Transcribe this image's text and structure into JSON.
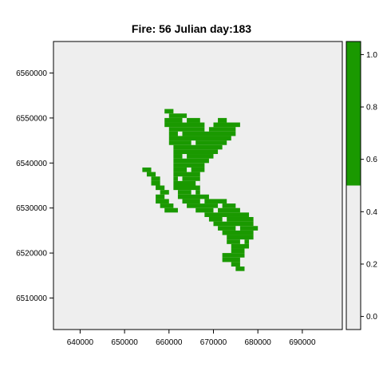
{
  "chart_data": {
    "type": "heatmap",
    "title": "Fire: 56   Julian day:183",
    "xlabel": "",
    "ylabel": "",
    "xlim": [
      634000,
      699000
    ],
    "ylim": [
      6503000,
      6567000
    ],
    "x_ticks": [
      "640000",
      "650000",
      "660000",
      "670000",
      "680000",
      "690000"
    ],
    "y_ticks": [
      "6510000",
      "6520000",
      "6530000",
      "6540000",
      "6550000",
      "6560000"
    ],
    "x_tick_values": [
      640000,
      650000,
      660000,
      670000,
      680000,
      690000
    ],
    "y_tick_values": [
      6510000,
      6520000,
      6530000,
      6540000,
      6550000,
      6560000
    ],
    "grid": false,
    "legend": "right",
    "colors": {
      "background": "#eeeeee",
      "burned": "#1a9900",
      "unburned": "#eeeeee"
    },
    "colorbar": {
      "range": [
        -0.05,
        1.05
      ],
      "ticks": [
        "0.0",
        "0.2",
        "0.4",
        "0.6",
        "0.8",
        "1.0"
      ],
      "tick_values": [
        0.0,
        0.2,
        0.4,
        0.6,
        0.8,
        1.0
      ],
      "breaks": [
        {
          "from": -0.05,
          "to": 0.5,
          "color": "#eeeeee"
        },
        {
          "from": 0.5,
          "to": 1.05,
          "color": "#1a9900"
        }
      ]
    },
    "cell_size": 1000,
    "burned_rows": [
      {
        "y": 6551000,
        "spans": [
          [
            659000,
            661000
          ]
        ]
      },
      {
        "y": 6550000,
        "spans": [
          [
            660000,
            664000
          ]
        ]
      },
      {
        "y": 6549000,
        "spans": [
          [
            659000,
            667000
          ],
          [
            671000,
            673000
          ]
        ]
      },
      {
        "y": 6548000,
        "spans": [
          [
            659000,
            668000
          ],
          [
            670000,
            676000
          ]
        ]
      },
      {
        "y": 6547000,
        "spans": [
          [
            660000,
            668000
          ],
          [
            669000,
            675000
          ]
        ]
      },
      {
        "y": 6546000,
        "spans": [
          [
            660000,
            675000
          ]
        ]
      },
      {
        "y": 6545000,
        "spans": [
          [
            660000,
            674000
          ]
        ]
      },
      {
        "y": 6544000,
        "spans": [
          [
            660000,
            673000
          ]
        ]
      },
      {
        "y": 6543000,
        "spans": [
          [
            661000,
            672000
          ]
        ]
      },
      {
        "y": 6542000,
        "spans": [
          [
            661000,
            671000
          ]
        ]
      },
      {
        "y": 6541000,
        "spans": [
          [
            661000,
            670000
          ]
        ]
      },
      {
        "y": 6540000,
        "spans": [
          [
            661000,
            669000
          ]
        ]
      },
      {
        "y": 6539000,
        "spans": [
          [
            661000,
            668000
          ]
        ]
      },
      {
        "y": 6538000,
        "spans": [
          [
            654000,
            656000
          ],
          [
            661000,
            668000
          ]
        ]
      },
      {
        "y": 6537000,
        "spans": [
          [
            655000,
            657000
          ],
          [
            661000,
            667000
          ]
        ]
      },
      {
        "y": 6536000,
        "spans": [
          [
            656000,
            658000
          ],
          [
            661000,
            667000
          ]
        ]
      },
      {
        "y": 6535000,
        "spans": [
          [
            656000,
            658000
          ],
          [
            661000,
            667000
          ]
        ]
      },
      {
        "y": 6534000,
        "spans": [
          [
            657000,
            659000
          ],
          [
            661000,
            667000
          ]
        ]
      },
      {
        "y": 6533000,
        "spans": [
          [
            658000,
            660000
          ],
          [
            662000,
            667000
          ]
        ]
      },
      {
        "y": 6532000,
        "spans": [
          [
            657000,
            659000
          ],
          [
            662000,
            669000
          ]
        ]
      },
      {
        "y": 6531000,
        "spans": [
          [
            657000,
            660000
          ],
          [
            663000,
            673000
          ]
        ]
      },
      {
        "y": 6530000,
        "spans": [
          [
            658000,
            661000
          ],
          [
            664000,
            675000
          ]
        ]
      },
      {
        "y": 6529000,
        "spans": [
          [
            659000,
            662000
          ],
          [
            666000,
            676000
          ]
        ]
      },
      {
        "y": 6528000,
        "spans": [
          [
            668000,
            678000
          ]
        ]
      },
      {
        "y": 6527000,
        "spans": [
          [
            669000,
            679000
          ]
        ]
      },
      {
        "y": 6526000,
        "spans": [
          [
            670000,
            679000
          ]
        ]
      },
      {
        "y": 6525000,
        "spans": [
          [
            671000,
            680000
          ]
        ]
      },
      {
        "y": 6524000,
        "spans": [
          [
            672000,
            679000
          ]
        ]
      },
      {
        "y": 6523000,
        "spans": [
          [
            673000,
            679000
          ]
        ]
      },
      {
        "y": 6522000,
        "spans": [
          [
            673000,
            678000
          ]
        ]
      },
      {
        "y": 6521000,
        "spans": [
          [
            674000,
            678000
          ]
        ]
      },
      {
        "y": 6520000,
        "spans": [
          [
            674000,
            677000
          ]
        ]
      },
      {
        "y": 6519000,
        "spans": [
          [
            672000,
            677000
          ]
        ]
      },
      {
        "y": 6518000,
        "spans": [
          [
            672000,
            676000
          ]
        ]
      },
      {
        "y": 6517000,
        "spans": [
          [
            674000,
            676000
          ]
        ]
      },
      {
        "y": 6516000,
        "spans": [
          [
            675000,
            677000
          ]
        ]
      }
    ],
    "holes": [
      [
        662000,
        6546000
      ],
      [
        665000,
        6544000
      ],
      [
        663000,
        6541000
      ],
      [
        664000,
        6538000
      ],
      [
        662000,
        6536000
      ],
      [
        665000,
        6533000
      ],
      [
        667000,
        6531000
      ],
      [
        670000,
        6529000
      ],
      [
        672000,
        6527000
      ],
      [
        675000,
        6525000
      ],
      [
        676000,
        6522000
      ],
      [
        671000,
        6530000
      ],
      [
        669000,
        6548000
      ],
      [
        663000,
        6549000
      ],
      [
        666000,
        6535000
      ]
    ]
  }
}
